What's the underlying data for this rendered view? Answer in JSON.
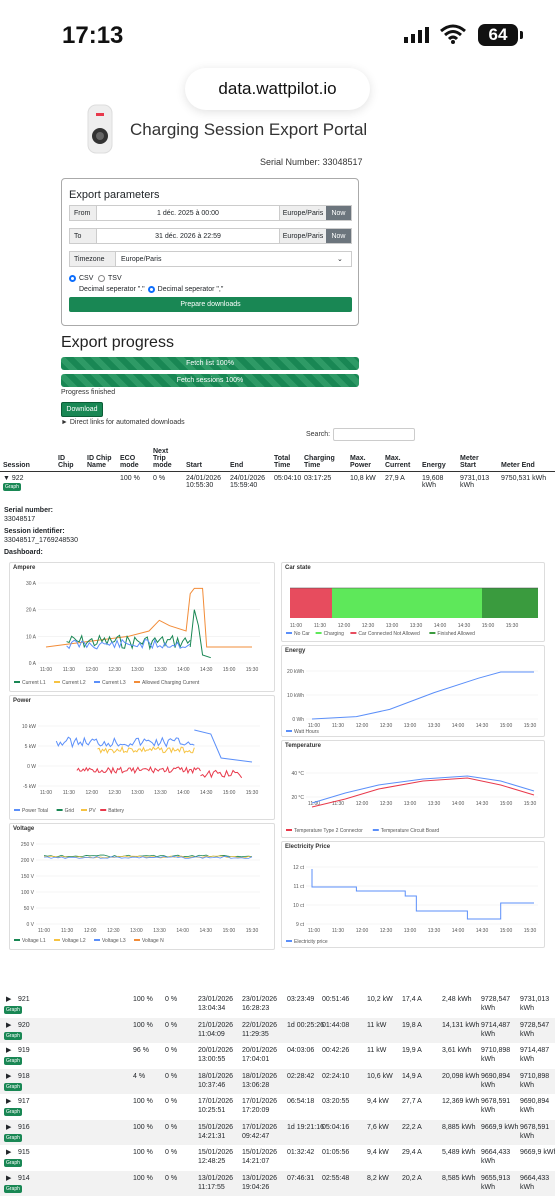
{
  "status": {
    "time": "17:13",
    "battery": "64"
  },
  "browser": {
    "url": "data.wattpilot.io"
  },
  "page": {
    "title": "Charging Session Export Portal",
    "serial_line": "Serial Number: 33048517"
  },
  "export": {
    "heading": "Export parameters",
    "from_label": "From",
    "from_value": "1 déc. 2025 à 00:00",
    "from_tz": "Europe/Paris",
    "to_label": "To",
    "to_value": "31 déc. 2026 à 22:59",
    "to_tz": "Europe/Paris",
    "now_label": "Now",
    "tz_label": "Timezone",
    "tz_value": "Europe/Paris",
    "csv": "CSV",
    "tsv": "TSV",
    "dec1": "Decimal seperator \".\"",
    "dec2": "Decimal seperator \",\"",
    "prepare": "Prepare downloads"
  },
  "progress": {
    "heading": "Export progress",
    "bar1": "Fetch list 100%",
    "bar2": "Fetch sessions 100%",
    "finished": "Progress finished",
    "download": "Download",
    "links": "► Direct links for automated downloads",
    "search": "Search:"
  },
  "table": {
    "headers": [
      "Session",
      "ID Chip",
      "ID Chip Name",
      "ECO mode",
      "Next Trip mode",
      "Start",
      "End",
      "Total Time",
      "Charging Time",
      "Max. Power",
      "Max. Current",
      "Energy",
      "Meter Start",
      "Meter End"
    ],
    "expanded": {
      "session": "922",
      "eco": "100 %",
      "trip": "0 %",
      "start": "24/01/2026 10:55:30",
      "end": "24/01/2026 15:59:40",
      "total": "05:04:10",
      "charging": "03:17:25",
      "power": "10,8 kW",
      "current": "27,9 A",
      "energy": "19,608 kWh",
      "mstart": "9731,013 kWh",
      "mend": "9750,531 kWh"
    },
    "graph_label": "Graph",
    "rows": [
      {
        "session": "921",
        "eco": "100 %",
        "trip": "0 %",
        "start": "23/01/2026 13:04:34",
        "end": "23/01/2026 16:28:23",
        "total": "03:23:49",
        "charging": "00:51:46",
        "power": "10,2 kW",
        "current": "17,4 A",
        "energy": "2,48 kWh",
        "mstart": "9728,547 kWh",
        "mend": "9731,013 kWh"
      },
      {
        "session": "920",
        "eco": "100 %",
        "trip": "0 %",
        "start": "21/01/2026 11:04:09",
        "end": "22/01/2026 11:29:35",
        "total": "1d 00:25:26",
        "charging": "01:44:08",
        "power": "11 kW",
        "current": "19,8 A",
        "energy": "14,131 kWh",
        "mstart": "9714,487 kWh",
        "mend": "9728,547 kWh"
      },
      {
        "session": "919",
        "eco": "96 %",
        "trip": "0 %",
        "start": "20/01/2026 13:00:55",
        "end": "20/01/2026 17:04:01",
        "total": "04:03:06",
        "charging": "00:42:26",
        "power": "11 kW",
        "current": "19,9 A",
        "energy": "3,61 kWh",
        "mstart": "9710,898 kWh",
        "mend": "9714,487 kWh"
      },
      {
        "session": "918",
        "eco": "4 %",
        "trip": "0 %",
        "start": "18/01/2026 10:37:46",
        "end": "18/01/2026 13:06:28",
        "total": "02:28:42",
        "charging": "02:24:10",
        "power": "10,6 kW",
        "current": "14,9 A",
        "energy": "20,098 kWh",
        "mstart": "9690,894 kWh",
        "mend": "9710,898 kWh"
      },
      {
        "session": "917",
        "eco": "100 %",
        "trip": "0 %",
        "start": "17/01/2026 10:25:51",
        "end": "17/01/2026 17:20:09",
        "total": "06:54:18",
        "charging": "03:20:55",
        "power": "9,4 kW",
        "current": "27,7 A",
        "energy": "12,369 kWh",
        "mstart": "9678,591 kWh",
        "mend": "9690,894 kWh"
      },
      {
        "session": "916",
        "eco": "100 %",
        "trip": "0 %",
        "start": "15/01/2026 14:21:31",
        "end": "17/01/2026 09:42:47",
        "total": "1d 19:21:16",
        "charging": "05:04:16",
        "power": "7,6 kW",
        "current": "22,2 A",
        "energy": "8,885 kWh",
        "mstart": "9669,9 kWh",
        "mend": "9678,591 kWh"
      },
      {
        "session": "915",
        "eco": "100 %",
        "trip": "0 %",
        "start": "15/01/2026 12:48:25",
        "end": "15/01/2026 14:21:07",
        "total": "01:32:42",
        "charging": "01:05:56",
        "power": "9,4 kW",
        "current": "29,4 A",
        "energy": "5,489 kWh",
        "mstart": "9664,433 kWh",
        "mend": "9669,9 kWh"
      },
      {
        "session": "914",
        "eco": "100 %",
        "trip": "0 %",
        "start": "13/01/2026 11:17:55",
        "end": "13/01/2026 19:04:26",
        "total": "07:46:31",
        "charging": "02:55:48",
        "power": "8,2 kW",
        "current": "20,2 A",
        "energy": "8,585 kWh",
        "mstart": "9655,913 kWh",
        "mend": "9664,433 kWh"
      }
    ]
  },
  "detail": {
    "serial_label": "Serial number:",
    "serial": "33048517",
    "sid_label": "Session identifier:",
    "sid": "33048517_1769248530",
    "dash_label": "Dashboard:"
  },
  "charts": {
    "times": [
      "11:00",
      "11:30",
      "12:00",
      "12:30",
      "13:00",
      "13:30",
      "14:00",
      "14:30",
      "15:00",
      "15:30"
    ],
    "ampere": {
      "title": "Ampere",
      "ticks": [
        "30 A",
        "20 A",
        "10 A",
        "0 A"
      ],
      "legend": [
        "Current L1",
        "Current L2",
        "Current L3",
        "Allowed Charging Current"
      ]
    },
    "power": {
      "title": "Power",
      "ticks": [
        "10 kW",
        "5 kW",
        "0 W",
        "-5 kW"
      ],
      "legend": [
        "Power Total",
        "Grid",
        "PV",
        "Battery"
      ]
    },
    "voltage": {
      "title": "Voltage",
      "ticks": [
        "250 V",
        "200 V",
        "150 V",
        "100 V",
        "50 V",
        "0 V"
      ],
      "legend": [
        "Voltage L1",
        "Voltage L2",
        "Voltage L3",
        "Voltage N"
      ]
    },
    "carstate": {
      "title": "Car state",
      "legend": [
        "No Car",
        "Charging",
        "Car Connected Not Allowed",
        "Finished Allowed"
      ]
    },
    "energy": {
      "title": "Energy",
      "ticks": [
        "20 kWh",
        "10 kWh",
        "0 Wh"
      ],
      "legend": [
        "Watt Hours"
      ]
    },
    "temperature": {
      "title": "Temperature",
      "ticks": [
        "40 °C",
        "20 °C"
      ],
      "legend": [
        "Temperature Type 2 Connector",
        "Temperature Circuit Board"
      ]
    },
    "price": {
      "title": "Electricity Price",
      "ticks": [
        "12 ct",
        "11 ct",
        "10 ct",
        "9 ct"
      ],
      "legend": [
        "Electricity price"
      ]
    }
  },
  "chart_data": [
    {
      "type": "line",
      "title": "Ampere",
      "ylim": [
        0,
        30
      ],
      "series": [
        {
          "name": "Allowed Charging Current",
          "x": [
            "11:00",
            "12:00",
            "13:00",
            "13:30",
            "14:00",
            "14:15",
            "14:30",
            "15:00",
            "15:30"
          ],
          "values": [
            6,
            8,
            10,
            16,
            12,
            28,
            28,
            6,
            6
          ]
        },
        {
          "name": "Current L1",
          "x": [
            "11:00",
            "12:00",
            "13:00",
            "14:00",
            "14:30",
            "15:00"
          ],
          "values": [
            0,
            14,
            12,
            10,
            8,
            0
          ]
        }
      ]
    },
    {
      "type": "line",
      "title": "Energy",
      "ylim": [
        0,
        20
      ],
      "series": [
        {
          "name": "Watt Hours",
          "x": [
            "11:00",
            "12:00",
            "13:00",
            "14:00",
            "15:00",
            "15:30"
          ],
          "values": [
            0,
            2,
            6,
            12,
            18,
            20
          ]
        }
      ]
    },
    {
      "type": "line",
      "title": "Temperature",
      "series": [
        {
          "name": "Temperature Type 2 Connector",
          "x": [
            "11:00",
            "12:00",
            "13:00",
            "14:00",
            "15:00",
            "15:30"
          ],
          "values": [
            18,
            28,
            35,
            40,
            36,
            28
          ]
        },
        {
          "name": "Temperature Circuit Board",
          "x": [
            "11:00",
            "12:00",
            "13:00",
            "14:00",
            "15:00",
            "15:30"
          ],
          "values": [
            20,
            30,
            36,
            41,
            38,
            31
          ]
        }
      ]
    },
    {
      "type": "line",
      "title": "Electricity Price",
      "ylim": [
        9,
        12
      ],
      "series": [
        {
          "name": "Electricity price",
          "x": [
            "11:00",
            "11:15",
            "12:00",
            "13:00",
            "14:00",
            "14:30",
            "15:00",
            "15:30"
          ],
          "values": [
            11.8,
            11,
            10.8,
            10.5,
            10,
            9.3,
            10,
            10
          ]
        }
      ]
    }
  ],
  "colors": {
    "green": "#198754",
    "blue": "#5b8ff9",
    "yellow": "#f6c342",
    "red": "#e8394b",
    "orange": "#f28c38",
    "carred": "#e74c5e",
    "cargreen": "#5ee85a",
    "cardk": "#3a9b3e"
  }
}
